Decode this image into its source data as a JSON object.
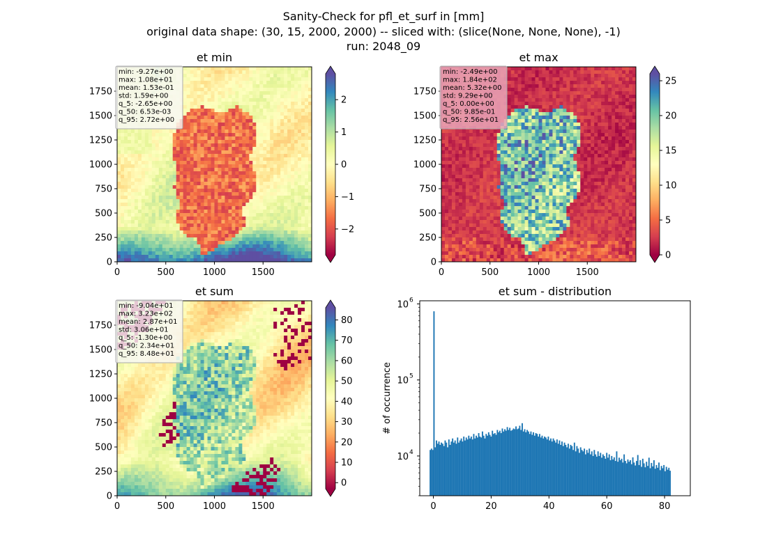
{
  "suptitle": [
    "Sanity-Check for pfl_et_surf in [mm]",
    "original data shape: (30, 15, 2000, 2000) -- sliced with: (slice(None, None, None), -1)",
    "run: 2048_09"
  ],
  "colors": {
    "spectral": [
      "#9e0142",
      "#d53e4f",
      "#f46d43",
      "#fdae61",
      "#fee08b",
      "#ffffbf",
      "#e6f598",
      "#abdda4",
      "#66c2a5",
      "#3288bd",
      "#5e4fa2"
    ],
    "hist_bar": "#1f77b4"
  },
  "chart_data": [
    {
      "type": "heatmap",
      "title": "et min",
      "xlim": [
        0,
        2000
      ],
      "ylim": [
        0,
        2000
      ],
      "xticks": [
        "0",
        "500",
        "1000",
        "1500"
      ],
      "yticks": [
        "0",
        "250",
        "500",
        "750",
        "1000",
        "1250",
        "1500",
        "1750"
      ],
      "colorbar": {
        "vmin": -2.8,
        "vmax": 2.8,
        "ticks": [
          "−2",
          "−1",
          "0",
          "1",
          "2"
        ],
        "tick_values": [
          -2,
          -1,
          0,
          1,
          2
        ]
      },
      "stats": [
        "min: -9.27e+00",
        "max: 1.08e+01",
        "mean: 1.53e-01",
        "std: 1.59e+00",
        "q_5: -2.65e+00",
        "q_50: 6.53e-03",
        "q_95: 2.72e+00"
      ],
      "stats_box": "white"
    },
    {
      "type": "heatmap",
      "title": "et max",
      "xlim": [
        0,
        2000
      ],
      "ylim": [
        0,
        2000
      ],
      "xticks": [
        "0",
        "500",
        "1000",
        "1500"
      ],
      "yticks": [
        "0",
        "250",
        "500",
        "750",
        "1000",
        "1250",
        "1500",
        "1750"
      ],
      "colorbar": {
        "vmin": 0,
        "vmax": 26,
        "ticks": [
          "0",
          "5",
          "10",
          "15",
          "20",
          "25"
        ],
        "tick_values": [
          0,
          5,
          10,
          15,
          20,
          25
        ]
      },
      "stats": [
        "min: -2.49e+00",
        "max: 1.84e+02",
        "mean: 5.32e+00",
        "std: 9.29e+00",
        "q_5: 0.00e+00",
        "q_50: 9.85e-01",
        "q_95: 2.56e+01"
      ],
      "stats_box": "pink"
    },
    {
      "type": "heatmap",
      "title": "et sum",
      "xlim": [
        0,
        2000
      ],
      "ylim": [
        0,
        2000
      ],
      "xticks": [
        "0",
        "500",
        "1000",
        "1500"
      ],
      "yticks": [
        "0",
        "250",
        "500",
        "750",
        "1000",
        "1250",
        "1500",
        "1750"
      ],
      "colorbar": {
        "vmin": -3,
        "vmax": 86,
        "ticks": [
          "0",
          "10",
          "20",
          "30",
          "40",
          "50",
          "60",
          "70",
          "80"
        ],
        "tick_values": [
          0,
          10,
          20,
          30,
          40,
          50,
          60,
          70,
          80
        ]
      },
      "stats": [
        "min: -9.04e+01",
        "max: 3.23e+02",
        "mean: 2.87e+01",
        "std: 3.06e+01",
        "q_5: -1.30e+00",
        "q_50: 2.34e+01",
        "q_95: 8.48e+01"
      ],
      "stats_box": "white"
    },
    {
      "type": "bar",
      "title": "et sum - distribution",
      "ylabel": "# of occurrence",
      "yscale": "log",
      "xlim": [
        -4.7,
        88.9
      ],
      "ylim": [
        3000,
        1100000
      ],
      "xticks": [
        "0",
        "20",
        "40",
        "60",
        "80"
      ],
      "yticks": [
        "10",
        "10",
        "10"
      ],
      "ytick_exponents": [
        "4",
        "5",
        "6"
      ],
      "bin_start": -1.3,
      "bin_width": 0.43,
      "counts": [
        12000,
        12500,
        12000,
        800000,
        13000,
        16000,
        14500,
        15500,
        14000,
        15000,
        14500,
        13500,
        16000,
        15000,
        13000,
        16500,
        14000,
        15500,
        17000,
        15000,
        16000,
        14500,
        17500,
        15000,
        16000,
        17000,
        15500,
        18000,
        16000,
        17500,
        16500,
        18500,
        17000,
        18000,
        16500,
        19500,
        17000,
        18500,
        17500,
        20000,
        18000,
        17500,
        21000,
        18500,
        17000,
        19500,
        18500,
        20500,
        19000,
        18000,
        21500,
        19500,
        20000,
        19000,
        22000,
        20500,
        21500,
        20000,
        23000,
        21000,
        22500,
        21500,
        24000,
        22000,
        23500,
        21500,
        22000,
        23000,
        22500,
        24500,
        22500,
        23000,
        25000,
        22000,
        27000,
        21000,
        22500,
        20500,
        22000,
        21000,
        19500,
        21000,
        19000,
        20500,
        18500,
        20000,
        19500,
        18000,
        19500,
        17500,
        18500,
        17000,
        18000,
        17500,
        16500,
        18000,
        16000,
        17000,
        15500,
        17000,
        16000,
        15000,
        16500,
        14500,
        16000,
        14000,
        15500,
        13500,
        15000,
        14000,
        13000,
        14500,
        12500,
        14000,
        13500,
        12000,
        15000,
        11500,
        13500,
        12500,
        11000,
        13000,
        12000,
        11500,
        12500,
        10500,
        12000,
        11000,
        12500,
        10500,
        11500,
        10000,
        12000,
        10500,
        9800,
        11500,
        10000,
        11000,
        9500,
        10500,
        10000,
        9200,
        11000,
        9500,
        10500,
        8800,
        10000,
        9000,
        9600,
        8600,
        11500,
        8400,
        9500,
        8800,
        9200,
        8200,
        10500,
        8600,
        8000,
        9000,
        8400,
        8800,
        7800,
        9600,
        8200,
        7500,
        8600,
        10300,
        7600,
        8800,
        7200,
        9200,
        8000,
        7100,
        8400,
        7400,
        9500,
        6900,
        8100,
        7300,
        8800,
        6800,
        7600,
        7000,
        8200,
        6500,
        7400,
        6900,
        7600,
        6300,
        7200,
        6600,
        7000,
        6400
      ]
    }
  ]
}
